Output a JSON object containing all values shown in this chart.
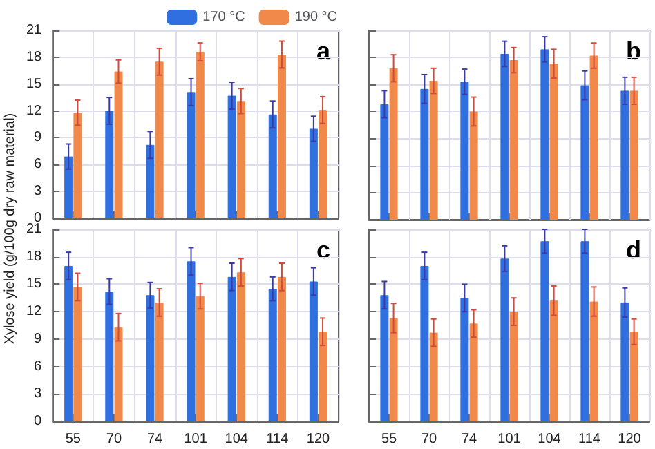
{
  "chart_data": [
    {
      "type": "bar",
      "ylabel": "Xylose yield (g/100g dry raw material)",
      "categories": [
        "55",
        "70",
        "74",
        "101",
        "104",
        "114",
        "120"
      ],
      "ylim": [
        0,
        21
      ],
      "yticks": [
        0,
        3,
        6,
        9,
        12,
        15,
        18,
        21
      ],
      "grid": true,
      "legend": "top",
      "tick_labels": "y",
      "annotations": [
        "a"
      ],
      "series": [
        {
          "name": "170 °C",
          "color": "#2f6fe0",
          "values": [
            6.9,
            12.0,
            8.2,
            14.1,
            13.7,
            11.6,
            10.0
          ],
          "errors": [
            1.4,
            1.5,
            1.5,
            1.5,
            1.5,
            1.5,
            1.4
          ]
        },
        {
          "name": "190 °C",
          "color": "#f0894a",
          "values": [
            11.8,
            16.4,
            17.5,
            18.6,
            13.1,
            18.3,
            12.1
          ],
          "errors": [
            1.4,
            1.3,
            1.5,
            1.0,
            1.4,
            1.5,
            1.5
          ]
        }
      ]
    },
    {
      "type": "bar",
      "categories": [
        "55",
        "70",
        "74",
        "101",
        "104",
        "114",
        "120"
      ],
      "ylim": [
        0,
        21
      ],
      "yticks": [
        0,
        3,
        6,
        9,
        12,
        15,
        18,
        21
      ],
      "grid": true,
      "tick_labels": false,
      "annotations": [
        "b"
      ],
      "series": [
        {
          "color": "#2f6fe0",
          "values": [
            12.8,
            14.5,
            15.3,
            18.4,
            18.9,
            14.9,
            14.3
          ],
          "errors": [
            1.5,
            1.6,
            1.4,
            1.4,
            1.4,
            1.6,
            1.5
          ]
        },
        {
          "color": "#f0894a",
          "values": [
            16.8,
            15.4,
            12.0,
            17.7,
            17.3,
            18.2,
            14.3
          ],
          "errors": [
            1.5,
            1.4,
            1.6,
            1.4,
            1.6,
            1.4,
            1.5
          ]
        }
      ]
    },
    {
      "type": "bar",
      "categories": [
        "55",
        "70",
        "74",
        "101",
        "104",
        "114",
        "120"
      ],
      "ylim": [
        0,
        21
      ],
      "yticks": [
        0,
        3,
        6,
        9,
        12,
        15,
        18,
        21
      ],
      "grid": true,
      "annotations": [
        "c"
      ],
      "series": [
        {
          "color": "#2f6fe0",
          "values": [
            17.0,
            14.2,
            13.8,
            17.5,
            15.8,
            14.5,
            15.3
          ],
          "errors": [
            1.5,
            1.4,
            1.4,
            1.5,
            1.5,
            1.3,
            1.5
          ]
        },
        {
          "color": "#f0894a",
          "values": [
            14.7,
            10.3,
            13.0,
            13.7,
            16.3,
            15.8,
            9.8
          ],
          "errors": [
            1.5,
            1.5,
            1.5,
            1.4,
            1.5,
            1.5,
            1.5
          ]
        }
      ]
    },
    {
      "type": "bar",
      "categories": [
        "55",
        "70",
        "74",
        "101",
        "104",
        "114",
        "120"
      ],
      "ylim": [
        0,
        21
      ],
      "yticks": [
        0,
        3,
        6,
        9,
        12,
        15,
        18,
        21
      ],
      "grid": true,
      "tick_labels": "x",
      "annotations": [
        "d"
      ],
      "series": [
        {
          "color": "#2f6fe0",
          "values": [
            13.8,
            17.0,
            13.5,
            17.8,
            19.7,
            19.7,
            13.0
          ],
          "errors": [
            1.5,
            1.5,
            1.5,
            1.4,
            1.3,
            1.3,
            1.6
          ]
        },
        {
          "color": "#f0894a",
          "values": [
            11.3,
            9.7,
            10.7,
            12.0,
            13.2,
            13.1,
            9.8
          ],
          "errors": [
            1.6,
            1.5,
            1.5,
            1.5,
            1.6,
            1.6,
            1.4
          ]
        }
      ]
    }
  ]
}
